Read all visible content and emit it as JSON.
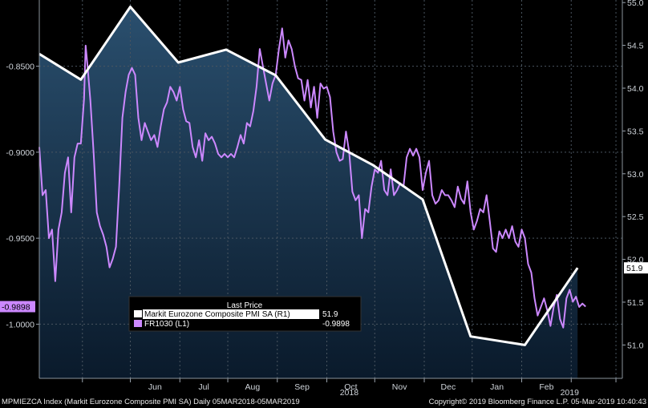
{
  "chart_data": {
    "type": "line",
    "legend": {
      "title": "Last Price",
      "placement": "bottom-left",
      "entries": [
        {
          "label": "Markit Eurozone Composite PMI SA  (R1)",
          "value": "51.9",
          "color": "#ffffff"
        },
        {
          "label": "FR1030  (L1)",
          "value": "-0.9898",
          "color": "#cc88ff"
        }
      ]
    },
    "left_axis": {
      "ticks": [
        "-0.8500",
        "-0.9000",
        "-0.9500",
        "-1.0000"
      ],
      "tick_values": [
        -0.85,
        -0.9,
        -0.95,
        -1.0
      ],
      "ylim": [
        -1.0315,
        -0.8115
      ],
      "last_label": "-0.9898"
    },
    "right_axis": {
      "ticks": [
        "55.0",
        "54.5",
        "54.0",
        "53.5",
        "53.0",
        "52.5",
        "52.0",
        "51.5",
        "51.0"
      ],
      "tick_values": [
        55.0,
        54.5,
        54.0,
        53.5,
        53.0,
        52.5,
        52.0,
        51.5,
        51.0
      ],
      "ylim": [
        50.61,
        55.03
      ],
      "last_label": "51.9"
    },
    "x_axis": {
      "month_labels": [
        "Jun",
        "Jul",
        "Aug",
        "Sep",
        "Oct",
        "Nov",
        "Dec",
        "Jan",
        "Feb"
      ],
      "year_labels": [
        "2018",
        "2019"
      ]
    },
    "series": [
      {
        "name": "Markit Eurozone Composite PMI SA",
        "axis": "right",
        "color": "#ffffff",
        "points": [
          [
            "2018-03-05",
            54.4
          ],
          [
            "2018-03-31",
            54.1
          ],
          [
            "2018-05-01",
            54.95
          ],
          [
            "2018-05-31",
            54.3
          ],
          [
            "2018-06-30",
            54.45
          ],
          [
            "2018-07-31",
            54.15
          ],
          [
            "2018-08-31",
            53.4
          ],
          [
            "2018-09-30",
            53.1
          ],
          [
            "2018-10-31",
            52.7
          ],
          [
            "2018-11-30",
            51.1
          ],
          [
            "2019-01-03",
            51.0
          ],
          [
            "2019-02-05",
            51.9
          ]
        ]
      },
      {
        "name": "FR1030",
        "axis": "left",
        "color": "#cc88ff",
        "points": [
          [
            "2018-03-05",
            -0.897
          ],
          [
            "2018-03-07",
            -0.925
          ],
          [
            "2018-03-09",
            -0.922
          ],
          [
            "2018-03-11",
            -0.95
          ],
          [
            "2018-03-13",
            -0.945
          ],
          [
            "2018-03-15",
            -0.975
          ],
          [
            "2018-03-17",
            -0.945
          ],
          [
            "2018-03-19",
            -0.935
          ],
          [
            "2018-03-21",
            -0.912
          ],
          [
            "2018-03-23",
            -0.903
          ],
          [
            "2018-03-25",
            -0.935
          ],
          [
            "2018-03-27",
            -0.903
          ],
          [
            "2018-03-29",
            -0.895
          ],
          [
            "2018-03-31",
            -0.895
          ],
          [
            "2018-04-02",
            -0.869
          ],
          [
            "2018-04-03",
            -0.838
          ],
          [
            "2018-04-04",
            -0.848
          ],
          [
            "2018-04-06",
            -0.87
          ],
          [
            "2018-04-08",
            -0.9
          ],
          [
            "2018-04-10",
            -0.935
          ],
          [
            "2018-04-12",
            -0.943
          ],
          [
            "2018-04-14",
            -0.948
          ],
          [
            "2018-04-16",
            -0.955
          ],
          [
            "2018-04-18",
            -0.967
          ],
          [
            "2018-04-20",
            -0.962
          ],
          [
            "2018-04-22",
            -0.955
          ],
          [
            "2018-04-24",
            -0.92
          ],
          [
            "2018-04-26",
            -0.88
          ],
          [
            "2018-04-28",
            -0.865
          ],
          [
            "2018-04-30",
            -0.855
          ],
          [
            "2018-05-02",
            -0.851
          ],
          [
            "2018-05-04",
            -0.855
          ],
          [
            "2018-05-06",
            -0.88
          ],
          [
            "2018-05-08",
            -0.893
          ],
          [
            "2018-05-10",
            -0.883
          ],
          [
            "2018-05-12",
            -0.888
          ],
          [
            "2018-05-14",
            -0.893
          ],
          [
            "2018-05-16",
            -0.89
          ],
          [
            "2018-05-18",
            -0.897
          ],
          [
            "2018-05-20",
            -0.885
          ],
          [
            "2018-05-22",
            -0.875
          ],
          [
            "2018-05-24",
            -0.871
          ],
          [
            "2018-05-26",
            -0.862
          ],
          [
            "2018-05-28",
            -0.865
          ],
          [
            "2018-05-30",
            -0.87
          ],
          [
            "2018-06-01",
            -0.862
          ],
          [
            "2018-06-03",
            -0.875
          ],
          [
            "2018-06-05",
            -0.882
          ],
          [
            "2018-06-07",
            -0.883
          ],
          [
            "2018-06-09",
            -0.897
          ],
          [
            "2018-06-11",
            -0.903
          ],
          [
            "2018-06-13",
            -0.893
          ],
          [
            "2018-06-15",
            -0.905
          ],
          [
            "2018-06-17",
            -0.889
          ],
          [
            "2018-06-19",
            -0.893
          ],
          [
            "2018-06-21",
            -0.891
          ],
          [
            "2018-06-23",
            -0.895
          ],
          [
            "2018-06-25",
            -0.901
          ],
          [
            "2018-06-27",
            -0.903
          ],
          [
            "2018-06-29",
            -0.901
          ],
          [
            "2018-07-01",
            -0.903
          ],
          [
            "2018-07-03",
            -0.901
          ],
          [
            "2018-07-05",
            -0.903
          ],
          [
            "2018-07-07",
            -0.897
          ],
          [
            "2018-07-09",
            -0.89
          ],
          [
            "2018-07-11",
            -0.895
          ],
          [
            "2018-07-13",
            -0.883
          ],
          [
            "2018-07-15",
            -0.885
          ],
          [
            "2018-07-17",
            -0.876
          ],
          [
            "2018-07-19",
            -0.862
          ],
          [
            "2018-07-21",
            -0.84
          ],
          [
            "2018-07-23",
            -0.85
          ],
          [
            "2018-07-25",
            -0.86
          ],
          [
            "2018-07-27",
            -0.87
          ],
          [
            "2018-07-29",
            -0.86
          ],
          [
            "2018-07-31",
            -0.855
          ],
          [
            "2018-08-02",
            -0.84
          ],
          [
            "2018-08-04",
            -0.828
          ],
          [
            "2018-08-05",
            -0.836
          ],
          [
            "2018-08-06",
            -0.845
          ],
          [
            "2018-08-08",
            -0.835
          ],
          [
            "2018-08-10",
            -0.84
          ],
          [
            "2018-08-12",
            -0.85
          ],
          [
            "2018-08-14",
            -0.857
          ],
          [
            "2018-08-16",
            -0.858
          ],
          [
            "2018-08-18",
            -0.87
          ],
          [
            "2018-08-20",
            -0.858
          ],
          [
            "2018-08-22",
            -0.874
          ],
          [
            "2018-08-24",
            -0.862
          ],
          [
            "2018-08-26",
            -0.88
          ],
          [
            "2018-08-28",
            -0.86
          ],
          [
            "2018-08-30",
            -0.863
          ],
          [
            "2018-09-01",
            -0.862
          ],
          [
            "2018-09-03",
            -0.868
          ],
          [
            "2018-09-05",
            -0.888
          ],
          [
            "2018-09-07",
            -0.9
          ],
          [
            "2018-09-09",
            -0.905
          ],
          [
            "2018-09-11",
            -0.904
          ],
          [
            "2018-09-13",
            -0.888
          ],
          [
            "2018-09-15",
            -0.9
          ],
          [
            "2018-09-17",
            -0.923
          ],
          [
            "2018-09-19",
            -0.928
          ],
          [
            "2018-09-21",
            -0.925
          ],
          [
            "2018-09-23",
            -0.95
          ],
          [
            "2018-09-25",
            -0.933
          ],
          [
            "2018-09-27",
            -0.935
          ],
          [
            "2018-09-29",
            -0.92
          ],
          [
            "2018-10-01",
            -0.91
          ],
          [
            "2018-10-03",
            -0.912
          ],
          [
            "2018-10-05",
            -0.905
          ],
          [
            "2018-10-07",
            -0.922
          ],
          [
            "2018-10-09",
            -0.925
          ],
          [
            "2018-10-11",
            -0.91
          ],
          [
            "2018-10-13",
            -0.925
          ],
          [
            "2018-10-15",
            -0.922
          ],
          [
            "2018-10-17",
            -0.918
          ],
          [
            "2018-10-19",
            -0.92
          ],
          [
            "2018-10-21",
            -0.903
          ],
          [
            "2018-10-23",
            -0.898
          ],
          [
            "2018-10-25",
            -0.902
          ],
          [
            "2018-10-27",
            -0.898
          ],
          [
            "2018-10-29",
            -0.903
          ],
          [
            "2018-10-31",
            -0.922
          ],
          [
            "2018-11-02",
            -0.912
          ],
          [
            "2018-11-04",
            -0.905
          ],
          [
            "2018-11-06",
            -0.925
          ],
          [
            "2018-11-08",
            -0.93
          ],
          [
            "2018-11-10",
            -0.928
          ],
          [
            "2018-11-12",
            -0.922
          ],
          [
            "2018-11-14",
            -0.925
          ],
          [
            "2018-11-16",
            -0.925
          ],
          [
            "2018-11-18",
            -0.928
          ],
          [
            "2018-11-20",
            -0.932
          ],
          [
            "2018-11-22",
            -0.92
          ],
          [
            "2018-11-24",
            -0.927
          ],
          [
            "2018-11-26",
            -0.93
          ],
          [
            "2018-11-28",
            -0.917
          ],
          [
            "2018-11-30",
            -0.935
          ],
          [
            "2018-12-02",
            -0.945
          ],
          [
            "2018-12-04",
            -0.94
          ],
          [
            "2018-12-06",
            -0.933
          ],
          [
            "2018-12-08",
            -0.935
          ],
          [
            "2018-12-10",
            -0.925
          ],
          [
            "2018-12-12",
            -0.94
          ],
          [
            "2018-12-14",
            -0.956
          ],
          [
            "2018-12-16",
            -0.958
          ],
          [
            "2018-12-18",
            -0.946
          ],
          [
            "2018-12-20",
            -0.95
          ],
          [
            "2018-12-22",
            -0.945
          ],
          [
            "2018-12-24",
            -0.95
          ],
          [
            "2018-12-26",
            -0.943
          ],
          [
            "2018-12-28",
            -0.952
          ],
          [
            "2018-12-30",
            -0.955
          ],
          [
            "2019-01-01",
            -0.945
          ],
          [
            "2019-01-03",
            -0.95
          ],
          [
            "2019-01-05",
            -0.965
          ],
          [
            "2019-01-07",
            -0.97
          ],
          [
            "2019-01-09",
            -0.985
          ],
          [
            "2019-01-11",
            -0.995
          ],
          [
            "2019-01-13",
            -0.99
          ],
          [
            "2019-01-15",
            -0.985
          ],
          [
            "2019-01-17",
            -0.992
          ],
          [
            "2019-01-19",
            -1.001
          ],
          [
            "2019-01-21",
            -0.99
          ],
          [
            "2019-01-23",
            -0.983
          ],
          [
            "2019-01-25",
            -0.997
          ],
          [
            "2019-01-27",
            -1.002
          ],
          [
            "2019-01-29",
            -0.985
          ],
          [
            "2019-01-31",
            -0.98
          ],
          [
            "2019-02-02",
            -0.987
          ],
          [
            "2019-02-04",
            -0.984
          ],
          [
            "2019-02-06",
            -0.99
          ],
          [
            "2019-02-08",
            -0.988
          ],
          [
            "2019-02-10",
            -0.9898
          ]
        ]
      }
    ],
    "grid": true
  },
  "footer": {
    "left": "MPMIEZCA Index (Markit Eurozone Composite PMI SA)  Daily 05MAR2018-05MAR2019",
    "right": "Copyright© 2019 Bloomberg Finance L.P.     05-Mar-2019 10:40:43"
  }
}
